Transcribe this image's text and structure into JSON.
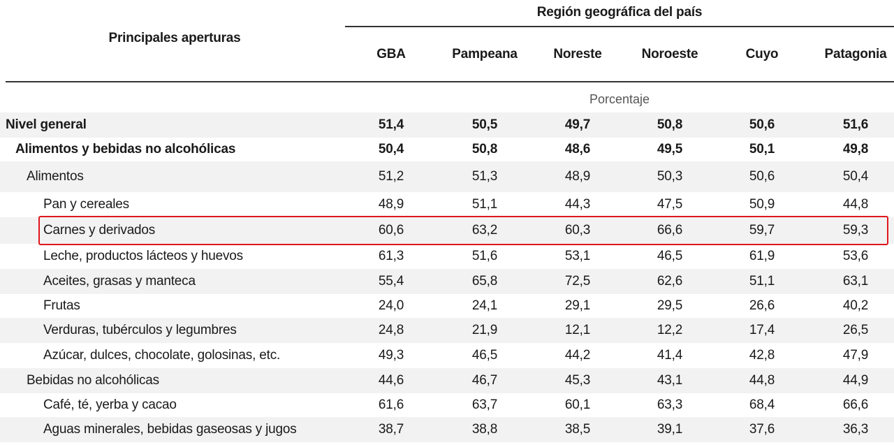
{
  "header": {
    "stub": "Principales aperturas",
    "region_title": "Región geográfica del país",
    "columns": [
      "GBA",
      "Pampeana",
      "Noreste",
      "Noroeste",
      "Cuyo",
      "Patagonia"
    ],
    "unit": "Porcentaje"
  },
  "rows": [
    {
      "label": "Nivel general",
      "level": 0,
      "bold": true,
      "values": [
        "51,4",
        "50,5",
        "49,7",
        "50,8",
        "50,6",
        "51,6"
      ]
    },
    {
      "label": "Alimentos y bebidas no alcohólicas",
      "level": 1,
      "bold": true,
      "values": [
        "50,4",
        "50,8",
        "48,6",
        "49,5",
        "50,1",
        "49,8"
      ]
    },
    {
      "label": "Alimentos",
      "level": 2,
      "bold": false,
      "values": [
        "51,2",
        "51,3",
        "48,9",
        "50,3",
        "50,6",
        "50,4"
      ]
    },
    {
      "label": "Pan y cereales",
      "level": 3,
      "bold": false,
      "values": [
        "48,9",
        "51,1",
        "44,3",
        "47,5",
        "50,9",
        "44,8"
      ]
    },
    {
      "label": "Carnes y derivados",
      "level": 3,
      "bold": false,
      "highlighted": true,
      "values": [
        "60,6",
        "63,2",
        "60,3",
        "66,6",
        "59,7",
        "59,3"
      ]
    },
    {
      "label": "Leche, productos lácteos y huevos",
      "level": 3,
      "bold": false,
      "values": [
        "61,3",
        "51,6",
        "53,1",
        "46,5",
        "61,9",
        "53,6"
      ]
    },
    {
      "label": "Aceites, grasas y manteca",
      "level": 3,
      "bold": false,
      "values": [
        "55,4",
        "65,8",
        "72,5",
        "62,6",
        "51,1",
        "63,1"
      ]
    },
    {
      "label": "Frutas",
      "level": 3,
      "bold": false,
      "values": [
        "24,0",
        "24,1",
        "29,1",
        "29,5",
        "26,6",
        "40,2"
      ]
    },
    {
      "label": "Verduras, tubérculos y legumbres",
      "level": 3,
      "bold": false,
      "values": [
        "24,8",
        "21,9",
        "12,1",
        "12,2",
        "17,4",
        "26,5"
      ]
    },
    {
      "label": "Azúcar, dulces, chocolate, golosinas, etc.",
      "level": 3,
      "bold": false,
      "values": [
        "49,3",
        "46,5",
        "44,2",
        "41,4",
        "42,8",
        "47,9"
      ]
    },
    {
      "label": "Bebidas no alcohólicas",
      "level": 2,
      "bold": false,
      "values": [
        "44,6",
        "46,7",
        "45,3",
        "43,1",
        "44,8",
        "44,9"
      ]
    },
    {
      "label": "Café, té, yerba y cacao",
      "level": 3,
      "bold": false,
      "values": [
        "61,6",
        "63,7",
        "60,1",
        "63,3",
        "68,4",
        "66,6"
      ]
    },
    {
      "label": "Aguas minerales, bebidas gaseosas y jugos",
      "level": 3,
      "bold": false,
      "values": [
        "38,7",
        "38,8",
        "38,5",
        "39,1",
        "37,6",
        "36,3"
      ]
    }
  ],
  "colors": {
    "highlight": "#e0161b",
    "shade": "#f2f2f2",
    "rule": "#333333"
  }
}
